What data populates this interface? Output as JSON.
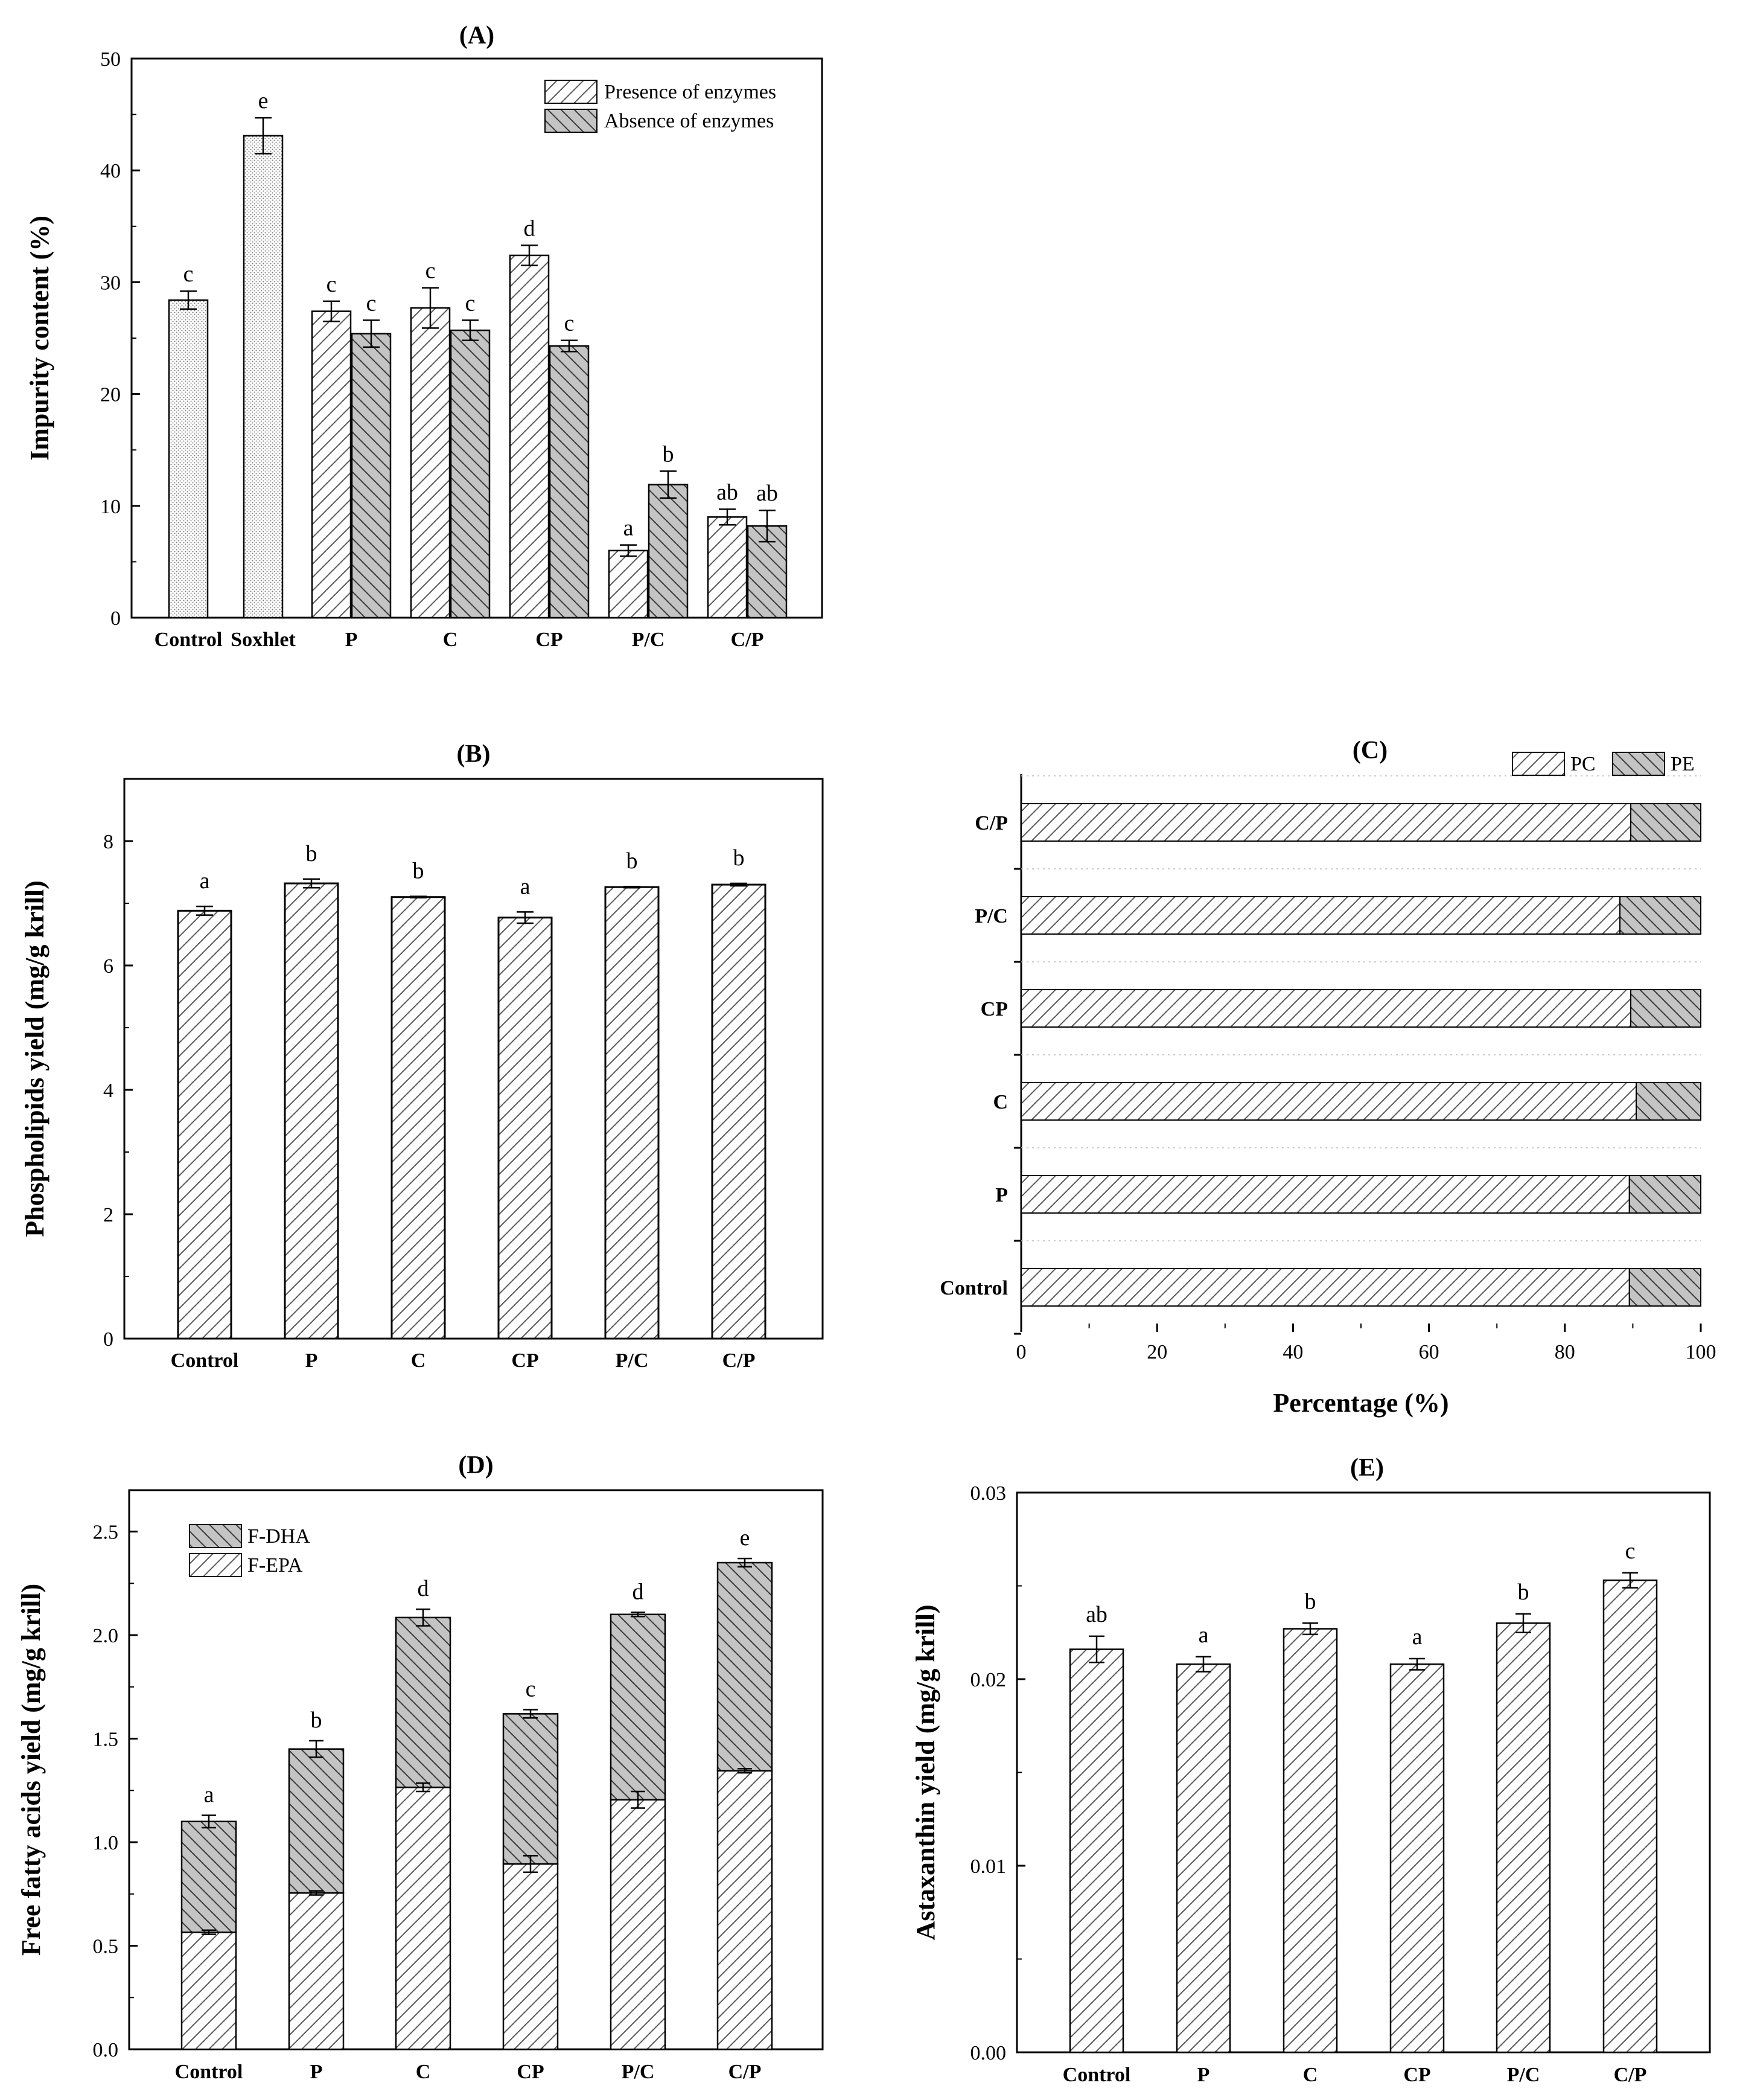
{
  "chart_data": [
    {
      "id": "A",
      "type": "bar",
      "title": "(A)",
      "xlabel": "",
      "ylabel": "Impurity content (%)",
      "ylim": [
        0,
        50
      ],
      "yticks": [
        0,
        10,
        20,
        30,
        40,
        50
      ],
      "categories": [
        "Control",
        "Soxhlet",
        "P",
        "C",
        "CP",
        "P/C",
        "C/P"
      ],
      "legend_position": "top-right",
      "series": [
        {
          "name": "Presence of enzymes",
          "values": [
            null,
            null,
            27.4,
            27.7,
            32.4,
            6.0,
            9.0
          ],
          "errors": [
            null,
            null,
            0.9,
            1.8,
            0.9,
            0.5,
            0.7
          ],
          "letters": [
            "",
            "",
            "c",
            "c",
            "d",
            "a",
            "ab"
          ]
        },
        {
          "name": "Absence of enzymes",
          "values": [
            null,
            null,
            25.4,
            25.7,
            24.3,
            11.9,
            8.2
          ],
          "errors": [
            null,
            null,
            1.2,
            0.9,
            0.5,
            1.2,
            1.4
          ],
          "letters": [
            "",
            "",
            "c",
            "c",
            "c",
            "b",
            "ab"
          ]
        }
      ],
      "reference_bars": [
        {
          "category": "Control",
          "value": 28.4,
          "error": 0.8,
          "letter": "c"
        },
        {
          "category": "Soxhlet",
          "value": 43.1,
          "error": 1.6,
          "letter": "e"
        }
      ]
    },
    {
      "id": "B",
      "type": "bar",
      "title": "(B)",
      "xlabel": "",
      "ylabel": "Phospholipids yield (mg/g krill)",
      "ylim": [
        0,
        9
      ],
      "yticks": [
        0,
        2,
        4,
        6,
        8
      ],
      "categories": [
        "Control",
        "P",
        "C",
        "CP",
        "P/C",
        "C/P"
      ],
      "series": [
        {
          "name": "",
          "values": [
            6.88,
            7.32,
            7.1,
            6.77,
            7.26,
            7.3
          ],
          "errors": [
            0.07,
            0.07,
            0.01,
            0.09,
            0.01,
            0.02
          ],
          "letters": [
            "a",
            "b",
            "b",
            "a",
            "b",
            "b"
          ]
        }
      ]
    },
    {
      "id": "C",
      "type": "bar",
      "orientation": "horizontal-stacked",
      "title": "(C)",
      "xlabel": "Percentage (%)",
      "ylabel": "",
      "xlim": [
        0,
        100
      ],
      "xticks": [
        0,
        20,
        40,
        60,
        80,
        100
      ],
      "categories": [
        "Control",
        "P",
        "C",
        "CP",
        "P/C",
        "C/P"
      ],
      "legend_position": "top-right",
      "series": [
        {
          "name": "PC",
          "values": [
            89.5,
            89.5,
            90.5,
            89.7,
            88.1,
            89.7
          ]
        },
        {
          "name": "PE",
          "values": [
            10.5,
            10.5,
            9.5,
            10.3,
            11.9,
            10.3
          ]
        }
      ]
    },
    {
      "id": "D",
      "type": "bar",
      "orientation": "stacked",
      "title": "(D)",
      "xlabel": "",
      "ylabel": "Free fatty acids yield (mg/g krill)",
      "ylim": [
        0,
        2.7
      ],
      "yticks": [
        0.0,
        0.5,
        1.0,
        1.5,
        2.0,
        2.5
      ],
      "ytick_labels": [
        "0.0",
        "0.5",
        "1.0",
        "1.5",
        "2.0",
        "2.5"
      ],
      "categories": [
        "Control",
        "P",
        "C",
        "CP",
        "P/C",
        "C/P"
      ],
      "legend_position": "top-left",
      "series": [
        {
          "name": "F-EPA",
          "values": [
            0.565,
            0.755,
            1.265,
            0.895,
            1.205,
            1.345
          ],
          "errors": [
            0.01,
            0.01,
            0.02,
            0.04,
            0.04,
            0.01
          ]
        },
        {
          "name": "F-DHA",
          "values": [
            0.535,
            0.695,
            0.82,
            0.725,
            0.895,
            1.005
          ],
          "errors": [
            0.03,
            0.04,
            0.04,
            0.02,
            0.01,
            0.02
          ]
        }
      ],
      "letters": [
        "a",
        "b",
        "d",
        "c",
        "d",
        "e"
      ]
    },
    {
      "id": "E",
      "type": "bar",
      "title": "(E)",
      "xlabel": "",
      "ylabel": "Astaxanthin yield (mg/g krill)",
      "ylim": [
        0,
        0.03
      ],
      "yticks": [
        0.0,
        0.01,
        0.02,
        0.03
      ],
      "ytick_labels": [
        "0.00",
        "0.01",
        "0.02",
        "0.03"
      ],
      "categories": [
        "Control",
        "P",
        "C",
        "CP",
        "P/C",
        "C/P"
      ],
      "series": [
        {
          "name": "",
          "values": [
            0.0216,
            0.0208,
            0.0227,
            0.0208,
            0.023,
            0.0253
          ],
          "errors": [
            0.0007,
            0.0004,
            0.0003,
            0.0003,
            0.0005,
            0.0004
          ],
          "letters": [
            "ab",
            "a",
            "b",
            "a",
            "b",
            "c"
          ]
        }
      ]
    }
  ]
}
